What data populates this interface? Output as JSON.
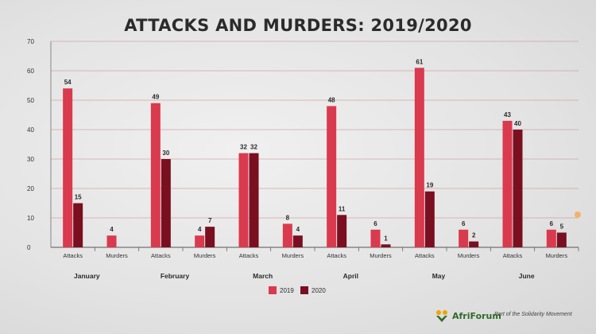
{
  "title": "ATTACKS AND MURDERS: 2019/2020",
  "colors": {
    "series_2019": "#d93a4e",
    "series_2020": "#7a0f20",
    "grid": "#c98a8a",
    "text": "#333333"
  },
  "branding": {
    "name": "AfriForum",
    "tagline": "Part of the Solidarity Movement",
    "logo_icon": "afriforum-logo-icon"
  },
  "chart_data": {
    "type": "bar",
    "title": "ATTACKS AND MURDERS: 2019/2020",
    "xlabel": "",
    "ylabel": "",
    "ylim": [
      0,
      70
    ],
    "yticks": [
      0,
      10,
      20,
      30,
      40,
      50,
      60,
      70
    ],
    "grid": true,
    "legend_position": "bottom-center",
    "groups": [
      "January",
      "February",
      "March",
      "April",
      "May",
      "June"
    ],
    "subcategories": [
      "Attacks",
      "Murders"
    ],
    "series": [
      {
        "name": "2019",
        "values": [
          54,
          4,
          49,
          4,
          32,
          8,
          48,
          6,
          61,
          6,
          43,
          6
        ]
      },
      {
        "name": "2020",
        "values": [
          15,
          null,
          30,
          7,
          32,
          4,
          11,
          1,
          19,
          2,
          40,
          5
        ]
      }
    ]
  }
}
